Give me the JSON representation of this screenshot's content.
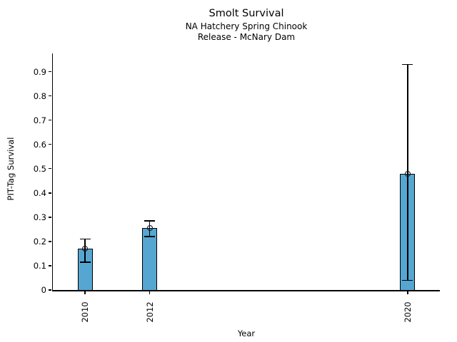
{
  "chart_data": {
    "type": "bar",
    "title": "Smolt Survival",
    "subtitle_line1": "NA Hatchery Spring Chinook",
    "subtitle_line2": "Release - McNary Dam",
    "xlabel": "Year",
    "ylabel": "PIT-Tag Survival",
    "categories": [
      "2010",
      "2012",
      "2020"
    ],
    "x": [
      2010,
      2012,
      2020
    ],
    "values": [
      0.17,
      0.255,
      0.48
    ],
    "error_low": [
      0.115,
      0.22,
      0.04
    ],
    "error_high": [
      0.21,
      0.285,
      0.93
    ],
    "xlim": [
      2009,
      2021
    ],
    "ylim": [
      0,
      0.975
    ],
    "yticks": [
      0,
      0.1,
      0.2,
      0.3,
      0.4,
      0.5,
      0.6,
      0.7,
      0.8,
      0.9
    ],
    "ytick_labels": [
      "0",
      "0.1",
      "0.2",
      "0.3",
      "0.4",
      "0.5",
      "0.6",
      "0.7",
      "0.8",
      "0.9"
    ],
    "grid": false,
    "legend": "none",
    "bar_color": "#56a6d2",
    "bar_edge_color": "#000000",
    "error_bar_color": "#000000",
    "marker": "open-circle"
  }
}
